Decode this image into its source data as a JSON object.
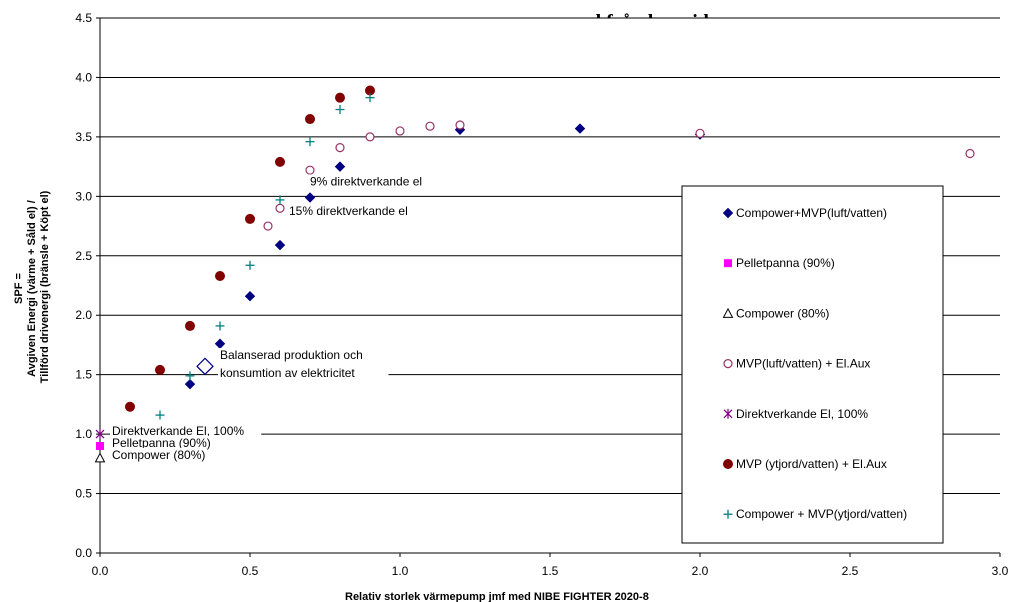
{
  "top_text": "ned från hemsidan.",
  "chart_data": {
    "type": "scatter",
    "xlabel": "Relativ storlek värmepump jmf med NIBE FIGHTER 2020-8",
    "ylabel_lines": [
      "SPF =",
      "Avgiven Energi (värme + Såld el) /",
      "Tillförd drivenergi (bränsle + Köpt el)"
    ],
    "xlim": [
      0,
      3
    ],
    "ylim": [
      0,
      4.5
    ],
    "xticks": [
      "0.0",
      "0.5",
      "1.0",
      "1.5",
      "2.0",
      "2.5",
      "3.0"
    ],
    "yticks": [
      "0.0",
      "0.5",
      "1.0",
      "1.5",
      "2.0",
      "2.5",
      "3.0",
      "3.5",
      "4.0",
      "4.5"
    ],
    "grid": "horizontal",
    "legend_position": "right",
    "series": [
      {
        "name": "Compower+MVP(luft/vatten)",
        "marker": "diamond",
        "color": "#000080",
        "x": [
          0.3,
          0.4,
          0.5,
          0.6,
          0.7,
          0.8,
          1.2,
          1.6,
          2.0
        ],
        "y": [
          1.42,
          1.76,
          2.16,
          2.59,
          2.99,
          3.25,
          3.56,
          3.57,
          3.52
        ]
      },
      {
        "name": "Pelletpanna (90%)",
        "marker": "square",
        "color": "#ff00ff",
        "x": [
          0.0
        ],
        "y": [
          0.9
        ]
      },
      {
        "name": "Compower (80%)",
        "marker": "triangle",
        "color": "#000000",
        "x": [
          0.0
        ],
        "y": [
          0.8
        ]
      },
      {
        "name": "MVP(luft/vatten) + El.Aux",
        "marker": "circle-open",
        "color": "#993366",
        "x": [
          0.56,
          0.6,
          0.7,
          0.8,
          0.9,
          1.0,
          1.1,
          1.2,
          2.0,
          2.9
        ],
        "y": [
          2.75,
          2.9,
          3.22,
          3.41,
          3.5,
          3.55,
          3.59,
          3.6,
          3.53,
          3.36
        ]
      },
      {
        "name": "Direktverkande El, 100%",
        "marker": "asterisk",
        "color": "#800080",
        "x": [
          0.0
        ],
        "y": [
          1.0
        ]
      },
      {
        "name": "MVP (ytjord/vatten) + El.Aux",
        "marker": "circle",
        "color": "#800000",
        "x": [
          0.1,
          0.2,
          0.3,
          0.4,
          0.5,
          0.6,
          0.7,
          0.8,
          0.9
        ],
        "y": [
          1.23,
          1.54,
          1.91,
          2.33,
          2.81,
          3.29,
          3.65,
          3.83,
          3.89
        ]
      },
      {
        "name": "Compower + MVP(ytjord/vatten)",
        "marker": "plus",
        "color": "#008080",
        "x": [
          0.1,
          0.2,
          0.3,
          0.4,
          0.5,
          0.6,
          0.7,
          0.8,
          0.9
        ],
        "y": [
          0.95,
          1.16,
          1.49,
          1.91,
          2.42,
          2.97,
          3.46,
          3.73,
          3.83
        ]
      }
    ],
    "special_point": {
      "x": 0.35,
      "y": 1.57,
      "marker": "diamond-open-large"
    },
    "annotations": [
      {
        "text": "9% direktverkande el",
        "x": 0.7,
        "y": 3.1
      },
      {
        "text": "15% direktverkande el",
        "x": 0.63,
        "y": 2.85
      },
      {
        "text": "Balanserad produktion och",
        "x": 0.4,
        "y": 1.64
      },
      {
        "text": "konsumtion av elektricitet",
        "x": 0.4,
        "y": 1.49
      },
      {
        "text": "Direktverkande El, 100%",
        "x": 0.04,
        "y": 1.0
      },
      {
        "text": "Pelletpanna (90%)",
        "x": 0.04,
        "y": 0.9
      },
      {
        "text": "Compower (80%)",
        "x": 0.04,
        "y": 0.8
      }
    ]
  }
}
